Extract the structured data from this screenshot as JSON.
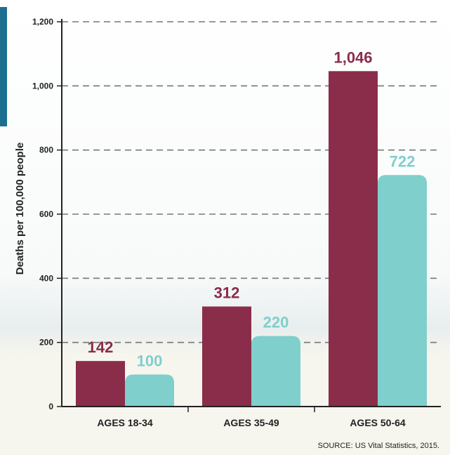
{
  "colors": {
    "series_1": "#8a2d4a",
    "series_2": "#7fcfcc",
    "grid": "#777777",
    "axis": "#222222"
  },
  "chart_data": {
    "type": "bar",
    "categories": [
      "AGES 18-34",
      "AGES 35-49",
      "AGES 50-64"
    ],
    "series": [
      {
        "values": [
          142,
          312,
          1046
        ],
        "labels": [
          "142",
          "312",
          "1,046"
        ]
      },
      {
        "values": [
          100,
          220,
          722
        ],
        "labels": [
          "100",
          "220",
          "722"
        ]
      }
    ],
    "ylabel": "Deaths per 100,000 people",
    "ylim": [
      0,
      1200
    ],
    "yticks": [
      "0",
      "200",
      "400",
      "600",
      "800",
      "1,000",
      "1,200"
    ],
    "grid": true,
    "source": "SOURCE: US Vital Statistics, 2015."
  }
}
